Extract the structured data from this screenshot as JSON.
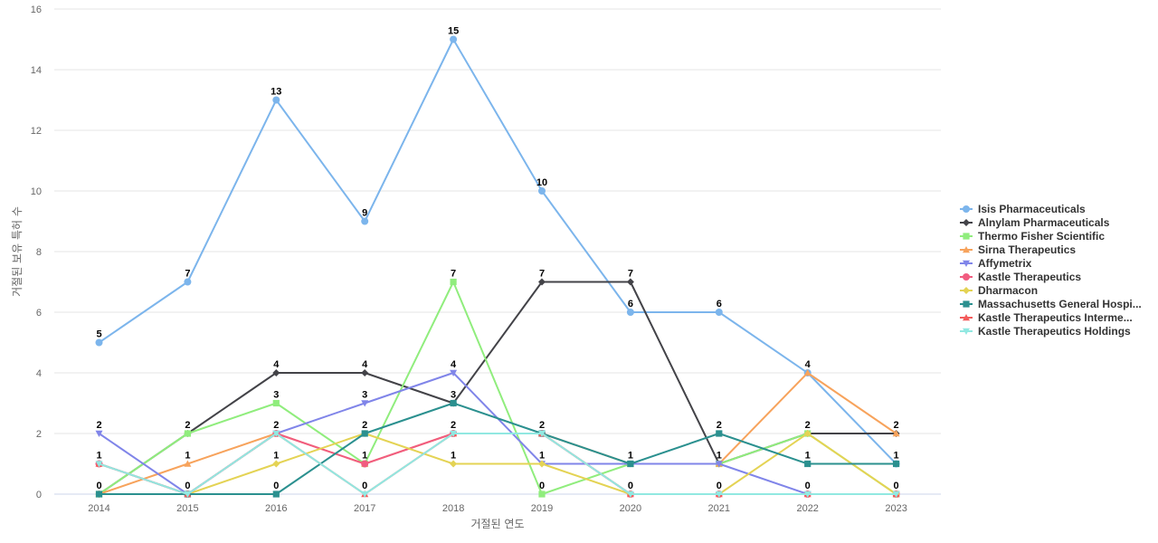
{
  "chart_data": {
    "type": "line",
    "title": "",
    "xlabel": "거절된 연도",
    "ylabel": "거절된 보유 특허 수",
    "x": [
      "2014",
      "2015",
      "2016",
      "2017",
      "2018",
      "2019",
      "2020",
      "2021",
      "2022",
      "2023"
    ],
    "ylim": [
      0,
      16
    ],
    "yticks": [
      0,
      2,
      4,
      6,
      8,
      10,
      12,
      14,
      16
    ],
    "grid": true,
    "legend_position": "right",
    "series": [
      {
        "name": "Isis Pharmaceuticals",
        "values": [
          5,
          7,
          13,
          9,
          15,
          10,
          6,
          6,
          4,
          1
        ],
        "color": "#7cb5ec",
        "marker": "circle"
      },
      {
        "name": "Alnylam Pharmaceuticals",
        "values": [
          0,
          2,
          4,
          4,
          3,
          7,
          7,
          1,
          2,
          2
        ],
        "color": "#434348",
        "marker": "diamond"
      },
      {
        "name": "Thermo Fisher Scientific",
        "values": [
          0,
          2,
          3,
          1,
          7,
          0,
          1,
          1,
          2,
          0
        ],
        "color": "#90ed7d",
        "marker": "square"
      },
      {
        "name": "Sirna Therapeutics",
        "values": [
          0,
          1,
          2,
          1,
          2,
          2,
          1,
          1,
          4,
          2
        ],
        "color": "#f7a35c",
        "marker": "triangle"
      },
      {
        "name": "Affymetrix",
        "values": [
          2,
          0,
          2,
          3,
          4,
          1,
          1,
          1,
          0,
          0
        ],
        "color": "#8085e9",
        "marker": "triangle-down"
      },
      {
        "name": "Kastle Therapeutics",
        "values": [
          1,
          0,
          2,
          1,
          2,
          2,
          0,
          0,
          0,
          0
        ],
        "color": "#f15c80",
        "marker": "circle"
      },
      {
        "name": "Dharmacon",
        "values": [
          0,
          0,
          1,
          2,
          1,
          1,
          0,
          0,
          2,
          0
        ],
        "color": "#e4d354",
        "marker": "diamond"
      },
      {
        "name": "Massachusetts General Hospi...",
        "values": [
          0,
          0,
          0,
          2,
          3,
          2,
          1,
          2,
          1,
          1
        ],
        "color": "#2b908f",
        "marker": "square"
      },
      {
        "name": "Kastle Therapeutics Interme...",
        "values": [
          1,
          0,
          2,
          0,
          2,
          2,
          0,
          0,
          0,
          0
        ],
        "color": "#f45b5b",
        "marker": "triangle"
      },
      {
        "name": "Kastle Therapeutics Holdings",
        "values": [
          1,
          0,
          2,
          0,
          2,
          2,
          0,
          0,
          0,
          0
        ],
        "color": "#91e8e1",
        "marker": "triangle-down"
      }
    ],
    "data_labels": [
      {
        "x": "2014",
        "y": 5,
        "text": "5"
      },
      {
        "x": "2014",
        "y": 2,
        "text": "2"
      },
      {
        "x": "2014",
        "y": 1,
        "text": "1"
      },
      {
        "x": "2014",
        "y": 0,
        "text": "0"
      },
      {
        "x": "2015",
        "y": 7,
        "text": "7"
      },
      {
        "x": "2015",
        "y": 2,
        "text": "2"
      },
      {
        "x": "2015",
        "y": 1,
        "text": "1"
      },
      {
        "x": "2015",
        "y": 0,
        "text": "0"
      },
      {
        "x": "2016",
        "y": 13,
        "text": "13"
      },
      {
        "x": "2016",
        "y": 4,
        "text": "4"
      },
      {
        "x": "2016",
        "y": 3,
        "text": "3"
      },
      {
        "x": "2016",
        "y": 2,
        "text": "2"
      },
      {
        "x": "2016",
        "y": 1,
        "text": "1"
      },
      {
        "x": "2016",
        "y": 0,
        "text": "0"
      },
      {
        "x": "2017",
        "y": 9,
        "text": "9"
      },
      {
        "x": "2017",
        "y": 4,
        "text": "4"
      },
      {
        "x": "2017",
        "y": 3,
        "text": "3"
      },
      {
        "x": "2017",
        "y": 2,
        "text": "2"
      },
      {
        "x": "2017",
        "y": 1,
        "text": "1"
      },
      {
        "x": "2017",
        "y": 0,
        "text": "0"
      },
      {
        "x": "2018",
        "y": 15,
        "text": "15"
      },
      {
        "x": "2018",
        "y": 7,
        "text": "7"
      },
      {
        "x": "2018",
        "y": 4,
        "text": "4"
      },
      {
        "x": "2018",
        "y": 3,
        "text": "3"
      },
      {
        "x": "2018",
        "y": 2,
        "text": "2"
      },
      {
        "x": "2018",
        "y": 1,
        "text": "1"
      },
      {
        "x": "2019",
        "y": 10,
        "text": "10"
      },
      {
        "x": "2019",
        "y": 7,
        "text": "7"
      },
      {
        "x": "2019",
        "y": 2,
        "text": "2"
      },
      {
        "x": "2019",
        "y": 1,
        "text": "1"
      },
      {
        "x": "2019",
        "y": 0,
        "text": "0"
      },
      {
        "x": "2020",
        "y": 7,
        "text": "7"
      },
      {
        "x": "2020",
        "y": 6,
        "text": "6"
      },
      {
        "x": "2020",
        "y": 1,
        "text": "1"
      },
      {
        "x": "2020",
        "y": 0,
        "text": "0"
      },
      {
        "x": "2021",
        "y": 6,
        "text": "6"
      },
      {
        "x": "2021",
        "y": 2,
        "text": "2"
      },
      {
        "x": "2021",
        "y": 1,
        "text": "1"
      },
      {
        "x": "2021",
        "y": 0,
        "text": "0"
      },
      {
        "x": "2022",
        "y": 4,
        "text": "4"
      },
      {
        "x": "2022",
        "y": 2,
        "text": "2"
      },
      {
        "x": "2022",
        "y": 1,
        "text": "1"
      },
      {
        "x": "2022",
        "y": 0,
        "text": "0"
      },
      {
        "x": "2023",
        "y": 2,
        "text": "2"
      },
      {
        "x": "2023",
        "y": 1,
        "text": "1"
      },
      {
        "x": "2023",
        "y": 0,
        "text": "0"
      }
    ]
  }
}
